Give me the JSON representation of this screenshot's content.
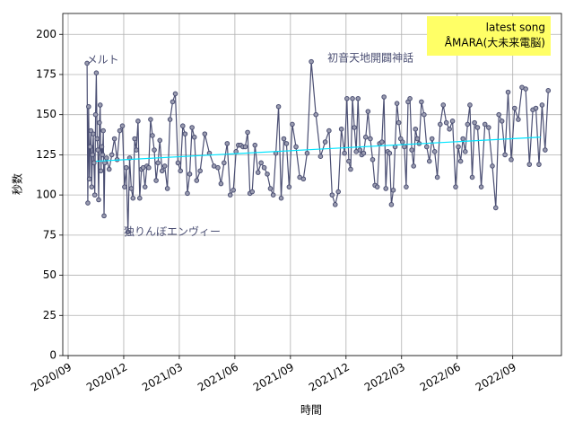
{
  "chart_data": {
    "type": "line",
    "xlabel": "時間",
    "ylabel": "秒数",
    "xlim": [
      "2020/09",
      "2022/11"
    ],
    "xticks": [
      "2020/09",
      "2020/12",
      "2021/03",
      "2021/06",
      "2021/09",
      "2021/12",
      "2022/03",
      "2022/06",
      "2022/09"
    ],
    "ylim": [
      0,
      213
    ],
    "yticks": [
      0,
      25,
      50,
      75,
      100,
      125,
      150,
      175,
      200
    ],
    "grid": true,
    "series": [
      {
        "color": "#4b4f73",
        "x": [
          "2020/10",
          "2020/10",
          "2020/10",
          "2020/10",
          "2020/10",
          "2020/10",
          "2020/10",
          "2020/10",
          "2020/10",
          "2020/10",
          "2020/10",
          "2020/10",
          "2020/10",
          "2020/10",
          "2020/10",
          "2020/10",
          "2020/10",
          "2020/10",
          "2020/10",
          "2020/10",
          "2020/10",
          "2020/10",
          "2020/10",
          "2020/10",
          "2020/11",
          "2020/11",
          "2020/11",
          "2020/11",
          "2020/11",
          "2020/11",
          "2020/11",
          "2020/12",
          "2020/12",
          "2020/12",
          "2020/12",
          "2020/12",
          "2020/12",
          "2020/12",
          "2020/12",
          "2020/12",
          "2020/12",
          "2020/12",
          "2021/01",
          "2021/01",
          "2021/01",
          "2021/01",
          "2021/01",
          "2021/01",
          "2021/01",
          "2021/01",
          "2021/01",
          "2021/01",
          "2021/02",
          "2021/02",
          "2021/02",
          "2021/02",
          "2021/02",
          "2021/02",
          "2021/02",
          "2021/03",
          "2021/03",
          "2021/03",
          "2021/03",
          "2021/03",
          "2021/03",
          "2021/03",
          "2021/03",
          "2021/04",
          "2021/04",
          "2021/04",
          "2021/04",
          "2021/05",
          "2021/05",
          "2021/05",
          "2021/05",
          "2021/05",
          "2021/05",
          "2021/06",
          "2021/06",
          "2021/06",
          "2021/06",
          "2021/06",
          "2021/06",
          "2021/06",
          "2021/06",
          "2021/07",
          "2021/07",
          "2021/07",
          "2021/07",
          "2021/07",
          "2021/07",
          "2021/08",
          "2021/08",
          "2021/08",
          "2021/08",
          "2021/08",
          "2021/08",
          "2021/08",
          "2021/09",
          "2021/09",
          "2021/09",
          "2021/09",
          "2021/09",
          "2021/10",
          "2021/10",
          "2021/10",
          "2021/10",
          "2021/11",
          "2021/11",
          "2021/11",
          "2021/11",
          "2021/11",
          "2021/11",
          "2021/12",
          "2021/12",
          "2021/12",
          "2021/12",
          "2021/12",
          "2021/12",
          "2021/12",
          "2021/12",
          "2021/12",
          "2021/12",
          "2022/01",
          "2022/01",
          "2022/01",
          "2022/01",
          "2022/01",
          "2022/01",
          "2022/01",
          "2022/01",
          "2022/02",
          "2022/02",
          "2022/02",
          "2022/02",
          "2022/02",
          "2022/02",
          "2022/02",
          "2022/02",
          "2022/02",
          "2022/02",
          "2022/03",
          "2022/03",
          "2022/03",
          "2022/03",
          "2022/03",
          "2022/03",
          "2022/03",
          "2022/03",
          "2022/03",
          "2022/03",
          "2022/04",
          "2022/04",
          "2022/04",
          "2022/04",
          "2022/04",
          "2022/04",
          "2022/04",
          "2022/05",
          "2022/05",
          "2022/05",
          "2022/05",
          "2022/05",
          "2022/05",
          "2022/06",
          "2022/06",
          "2022/06",
          "2022/06",
          "2022/06",
          "2022/06",
          "2022/06",
          "2022/06",
          "2022/07",
          "2022/07",
          "2022/07",
          "2022/07",
          "2022/07",
          "2022/08",
          "2022/08",
          "2022/08",
          "2022/08",
          "2022/08",
          "2022/08",
          "2022/09",
          "2022/09",
          "2022/09",
          "2022/09",
          "2022/09",
          "2022/10",
          "2022/10",
          "2022/10",
          "2022/10",
          "2022/10",
          "2022/10"
        ],
        "values": [
          182,
          95,
          155,
          110,
          130,
          140,
          105,
          125,
          138,
          120,
          100,
          150,
          176,
          135,
          128,
          97,
          145,
          156,
          115,
          130,
          125,
          140,
          87,
          120,
          123,
          116,
          125,
          135,
          122,
          140,
          143,
          105,
          117,
          77,
          123,
          104,
          98,
          135,
          128,
          146,
          98,
          116,
          117,
          105,
          118,
          117,
          147,
          137,
          128,
          109,
          120,
          134,
          115,
          118,
          104,
          147,
          158,
          163,
          120,
          115,
          143,
          138,
          101,
          113,
          142,
          136,
          109,
          115,
          138,
          126,
          118,
          117,
          107,
          120,
          132,
          100,
          103,
          127,
          131,
          131,
          130,
          130,
          139,
          101,
          102,
          131,
          114,
          120,
          117,
          113,
          104,
          100,
          126,
          155,
          98,
          135,
          132,
          105,
          144,
          130,
          111,
          110,
          126,
          183,
          150,
          124,
          133,
          140,
          100,
          94,
          102,
          141,
          126,
          160,
          121,
          116,
          160,
          142,
          127,
          160,
          128,
          125,
          126,
          136,
          152,
          135,
          122,
          106,
          105,
          132,
          133,
          161,
          104,
          127,
          126,
          94,
          103,
          130,
          157,
          145,
          135,
          133,
          130,
          105,
          158,
          160,
          128,
          118,
          141,
          135,
          132,
          158,
          150,
          130,
          121,
          135,
          127,
          111,
          144,
          156,
          145,
          141,
          146,
          105,
          130,
          121,
          135,
          127,
          144,
          156,
          111,
          145,
          142,
          105,
          144,
          142,
          118,
          92,
          150,
          146,
          125,
          164,
          122,
          154,
          147,
          167,
          166,
          119,
          153,
          154,
          119,
          156,
          128,
          165
        ]
      }
    ],
    "trend": {
      "color": "#00e5ff",
      "x": [
        "2020/10",
        "2022/10"
      ],
      "values": [
        121,
        136
      ]
    },
    "annotations": [
      {
        "text": "メルト",
        "x": "2020/10",
        "y": 184
      },
      {
        "text": "独りんぼエンヴィー",
        "x": "2020/12",
        "y": 77
      },
      {
        "text": "初音天地開闢神話",
        "x": "2021/11",
        "y": 185
      }
    ],
    "textbox": {
      "lines": [
        "latest song",
        "ÅMARA(大未来電脳)"
      ],
      "color": "#ffff66",
      "corner": "upper right"
    }
  }
}
